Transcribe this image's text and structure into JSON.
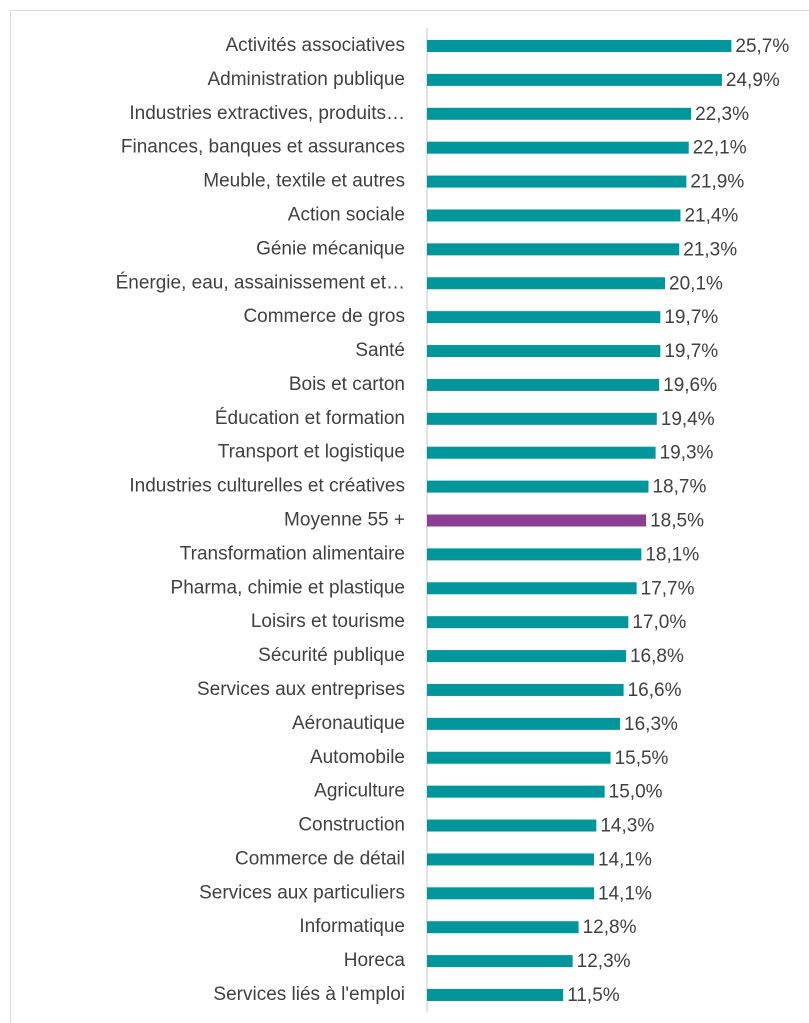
{
  "chart_data": {
    "type": "hbar",
    "categories": [
      "Activités associatives",
      "Administration publique",
      "Industries extractives, produits…",
      "Finances, banques et assurances",
      "Meuble, textile et autres",
      "Action sociale",
      "Génie mécanique",
      "Énergie, eau, assainissement et…",
      "Commerce de gros",
      "Santé",
      "Bois et carton",
      "Éducation et formation",
      "Transport et logistique",
      "Industries culturelles et créatives",
      "Moyenne 55 +",
      "Transformation alimentaire",
      "Pharma, chimie et plastique",
      "Loisirs et tourisme",
      "Sécurité publique",
      "Services aux entreprises",
      "Aéronautique",
      "Automobile",
      "Agriculture",
      "Construction",
      "Commerce de détail",
      "Services aux particuliers",
      "Informatique",
      "Horeca",
      "Services liés à l'emploi"
    ],
    "values": [
      25.7,
      24.9,
      22.3,
      22.1,
      21.9,
      21.4,
      21.3,
      20.1,
      19.7,
      19.7,
      19.6,
      19.4,
      19.3,
      18.7,
      18.5,
      18.1,
      17.7,
      17.0,
      16.8,
      16.6,
      16.3,
      15.5,
      15.0,
      14.3,
      14.1,
      14.1,
      12.8,
      12.3,
      11.5
    ],
    "value_labels": [
      "25,7%",
      "24,9%",
      "22,3%",
      "22,1%",
      "21,9%",
      "21,4%",
      "21,3%",
      "20,1%",
      "19,7%",
      "19,7%",
      "19,6%",
      "19,4%",
      "19,3%",
      "18,7%",
      "18,5%",
      "18,1%",
      "17,7%",
      "17,0%",
      "16,8%",
      "16,6%",
      "16,3%",
      "15,5%",
      "15,0%",
      "14,3%",
      "14,1%",
      "14,1%",
      "12,8%",
      "12,3%",
      "11,5%"
    ],
    "colors": [
      "#00969b",
      "#00969b",
      "#00969b",
      "#00969b",
      "#00969b",
      "#00969b",
      "#00969b",
      "#00969b",
      "#00969b",
      "#00969b",
      "#00969b",
      "#00969b",
      "#00969b",
      "#00969b",
      "#8b3f92",
      "#00969b",
      "#00969b",
      "#00969b",
      "#00969b",
      "#00969b",
      "#00969b",
      "#00969b",
      "#00969b",
      "#00969b",
      "#00969b",
      "#00969b",
      "#00969b",
      "#00969b",
      "#00969b"
    ],
    "xlim": [
      0,
      32
    ]
  }
}
